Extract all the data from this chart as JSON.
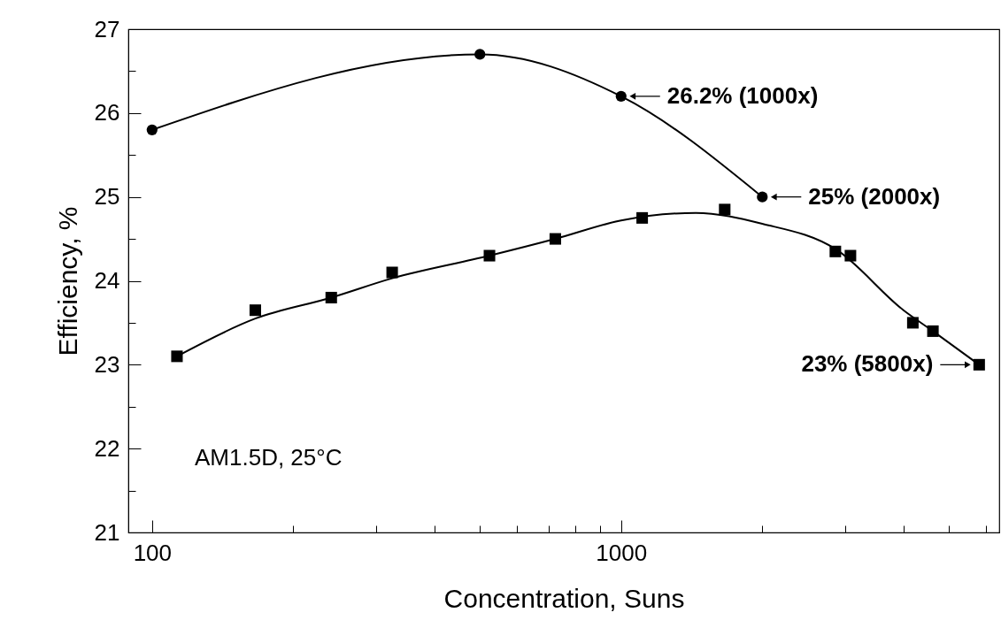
{
  "chart_data": {
    "type": "scatter",
    "xlabel": "Concentration, Suns",
    "ylabel": "Efficiency, %",
    "log": "x",
    "line_style": "solid",
    "xlim": [
      89,
      6400
    ],
    "ylim": [
      21,
      27
    ],
    "xticks": [
      100,
      {
        "value": 200,
        "label": null
      },
      {
        "value": 300,
        "label": null
      },
      {
        "value": 400,
        "label": null
      },
      {
        "value": 500,
        "label": null
      },
      {
        "value": 600,
        "label": null
      },
      {
        "value": 700,
        "label": null
      },
      {
        "value": 800,
        "label": null
      },
      {
        "value": 900,
        "label": null
      },
      1000,
      {
        "value": 2000,
        "label": null
      },
      {
        "value": 3000,
        "label": null
      },
      {
        "value": 4000,
        "label": null
      },
      {
        "value": 5000,
        "label": null
      },
      {
        "value": 6000,
        "label": null
      }
    ],
    "yticks": [
      21,
      {
        "value": 21.5,
        "label": null
      },
      22,
      {
        "value": 22.5,
        "label": null
      },
      23,
      {
        "value": 23.5,
        "label": null
      },
      24,
      {
        "value": 24.5,
        "label": null
      },
      25,
      {
        "value": 25.5,
        "label": null
      },
      26,
      {
        "value": 26.5,
        "label": null
      },
      27
    ],
    "series": [
      {
        "type": "line",
        "marker": "circle",
        "color": "#000000",
        "x": [
          100,
          500,
          1000,
          2000
        ],
        "values": [
          25.8,
          26.7,
          26.2,
          25
        ]
      },
      {
        "marker": "square",
        "color": "#000000",
        "x": [
          113,
          166,
          241,
          325,
          524,
          724,
          1109,
          1663,
          2863,
          3083,
          4188,
          4622,
          5800
        ],
        "values": [
          23.1,
          23.65,
          23.8,
          24.1,
          24.3,
          24.5,
          24.75,
          24.85,
          24.35,
          24.3,
          23.5,
          23.4,
          23
        ]
      },
      {
        "type": "line",
        "marker": "none",
        "color": "#000000",
        "x": [
          113,
          166,
          241,
          325,
          524,
          724,
          1000,
          1443,
          2000,
          2863,
          4000,
          4622,
          5800
        ],
        "values": [
          23.1,
          23.55,
          23.8,
          24.03,
          24.3,
          24.5,
          24.72,
          24.81,
          24.68,
          24.38,
          23.65,
          23.4,
          23
        ]
      }
    ],
    "annotations": [
      {
        "text": "26.2% (1000x)",
        "x": 1000,
        "y": 26.2
      },
      {
        "text": "25% (2000x)",
        "x": 2000,
        "y": 25
      },
      {
        "text": "23% (5800x)",
        "x": 5800,
        "y": 23
      },
      "AM1.5D, 25°C"
    ]
  }
}
